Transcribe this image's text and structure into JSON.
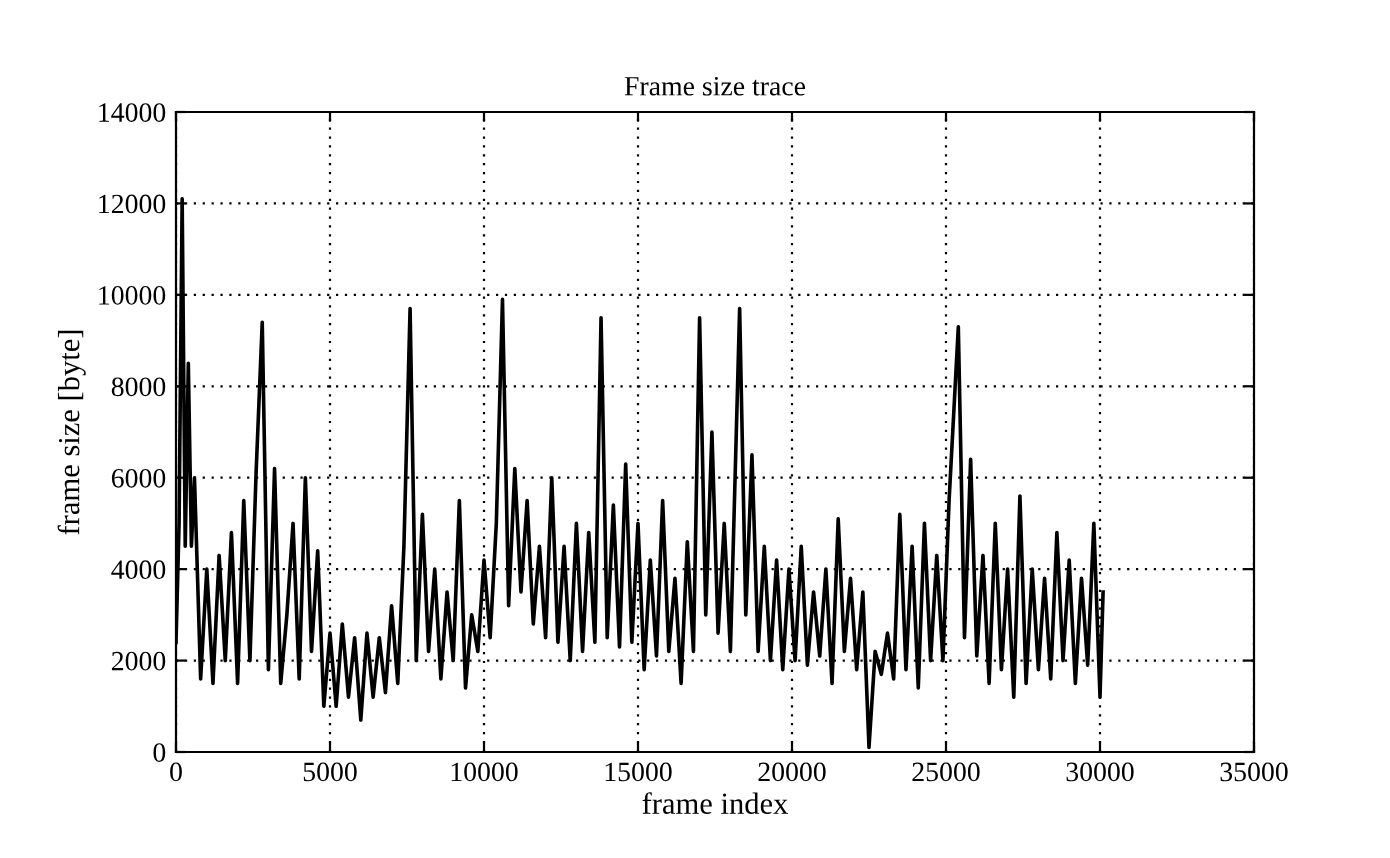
{
  "chart_data": {
    "type": "line",
    "title": "Frame size trace",
    "xlabel": "frame index",
    "ylabel": "frame size [byte]",
    "xlim": [
      0,
      35000
    ],
    "xticks": [
      0,
      5000,
      10000,
      15000,
      20000,
      25000,
      30000,
      35000
    ],
    "ylim": [
      0,
      14000
    ],
    "yticks": [
      0,
      2000,
      4000,
      6000,
      8000,
      10000,
      12000,
      14000
    ],
    "grid": true,
    "marker": "none",
    "line_style": "solid",
    "series": [
      {
        "color": "#000000",
        "x": [
          0,
          100,
          200,
          300,
          400,
          500,
          600,
          800,
          1000,
          1200,
          1400,
          1600,
          1800,
          2000,
          2200,
          2400,
          2600,
          2800,
          3000,
          3200,
          3400,
          3600,
          3800,
          4000,
          4200,
          4400,
          4600,
          4800,
          5000,
          5200,
          5400,
          5600,
          5800,
          6000,
          6200,
          6400,
          6600,
          6800,
          7000,
          7200,
          7400,
          7600,
          7800,
          8000,
          8200,
          8400,
          8600,
          8800,
          9000,
          9200,
          9400,
          9600,
          9800,
          10000,
          10200,
          10400,
          10600,
          10800,
          11000,
          11200,
          11400,
          11600,
          11800,
          12000,
          12200,
          12400,
          12600,
          12800,
          13000,
          13200,
          13400,
          13600,
          13800,
          14000,
          14200,
          14400,
          14600,
          14800,
          15000,
          15200,
          15400,
          15600,
          15800,
          16000,
          16200,
          16400,
          16600,
          16800,
          17000,
          17200,
          17400,
          17600,
          17800,
          18000,
          18300,
          18500,
          18700,
          18900,
          19100,
          19300,
          19500,
          19700,
          19900,
          20100,
          20300,
          20500,
          20700,
          20900,
          21100,
          21300,
          21500,
          21700,
          21900,
          22100,
          22300,
          22500,
          22700,
          22900,
          23100,
          23300,
          23500,
          23700,
          23900,
          24100,
          24300,
          24500,
          24700,
          24900,
          25100,
          25400,
          25600,
          25800,
          26000,
          26200,
          26400,
          26600,
          26800,
          27000,
          27200,
          27400,
          27600,
          27800,
          28000,
          28200,
          28400,
          28600,
          28800,
          29000,
          29200,
          29400,
          29600,
          29800,
          30000,
          30100
        ],
        "values": [
          2400,
          5000,
          12100,
          4500,
          8500,
          4500,
          6000,
          1600,
          4000,
          1500,
          4300,
          2000,
          4800,
          1500,
          5500,
          2000,
          6100,
          9400,
          1800,
          6200,
          1500,
          3000,
          5000,
          1600,
          6000,
          2200,
          4400,
          1000,
          2600,
          1000,
          2800,
          1200,
          2500,
          700,
          2600,
          1200,
          2500,
          1300,
          3200,
          1500,
          4500,
          9700,
          2000,
          5200,
          2200,
          4000,
          1600,
          3500,
          2000,
          5500,
          1400,
          3000,
          2200,
          4200,
          2500,
          5000,
          9900,
          3200,
          6200,
          3500,
          5500,
          2800,
          4500,
          2500,
          6000,
          2400,
          4500,
          2000,
          5000,
          2200,
          4800,
          2400,
          9500,
          2500,
          5400,
          2300,
          6300,
          2400,
          5000,
          1800,
          4200,
          2100,
          5500,
          2200,
          3800,
          1500,
          4600,
          2200,
          9500,
          3000,
          7000,
          2600,
          5000,
          2200,
          9700,
          3000,
          6500,
          2200,
          4500,
          2000,
          4200,
          1800,
          4000,
          2000,
          4500,
          1900,
          3500,
          2100,
          4000,
          1500,
          5100,
          2200,
          3800,
          1800,
          3500,
          100,
          2200,
          1700,
          2600,
          1600,
          5200,
          1800,
          4500,
          1400,
          5000,
          2000,
          4300,
          2000,
          5500,
          9300,
          2500,
          6400,
          2100,
          4300,
          1500,
          5000,
          1800,
          4000,
          1200,
          5600,
          1500,
          4000,
          1800,
          3800,
          1600,
          4800,
          2000,
          4200,
          1500,
          3800,
          1900,
          5000,
          1200,
          3500
        ]
      }
    ]
  }
}
